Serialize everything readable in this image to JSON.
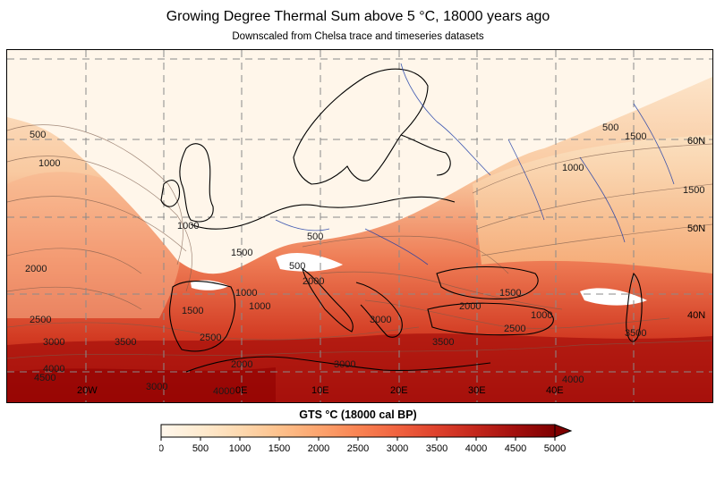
{
  "title": "Growing Degree Thermal Sum above 5 °C, 18000 years ago",
  "subtitle": "Downscaled from Chelsa trace and timeseries datasets",
  "map": {
    "graticule_labels": {
      "lon_20w": "20W",
      "lon_0e": "0E",
      "lon_10e": "10E",
      "lon_20e": "20E",
      "lon_30e": "30E",
      "lon_40e": "40E",
      "lat_60n": "60N",
      "lat_50n": "50N",
      "lat_40n": "40N"
    },
    "contour_labels": [
      "500",
      "1000",
      "2000",
      "2500",
      "3000",
      "3500",
      "4000",
      "4500",
      "1500",
      "1000",
      "500",
      "1000",
      "1500",
      "500",
      "2000",
      "1500",
      "1000",
      "2000",
      "3000",
      "3500",
      "4000",
      "2500",
      "3000",
      "1000",
      "1500",
      "2000",
      "3000",
      "2500",
      "3500",
      "4000",
      "1000",
      "500",
      "1500"
    ],
    "colors": {
      "ice": "#fff6ea",
      "low": "#fde5c8",
      "mid": "#f5a06a",
      "high": "#d6301d",
      "max": "#8f0000",
      "coast": "#000000",
      "rivers": "#1f3ea8",
      "grid": "#8a8a8a"
    }
  },
  "colorbar": {
    "title": "GTS °C (18000 cal BP)",
    "ticks": [
      "0",
      "500",
      "1000",
      "1500",
      "2000",
      "2500",
      "3000",
      "3500",
      "4000",
      "4500",
      "5000"
    ],
    "colors": [
      "#fff7ec",
      "#feebd0",
      "#fdd9b0",
      "#fdc18c",
      "#fca46e",
      "#f98352",
      "#f0623f",
      "#de412c",
      "#c3261b",
      "#a20f0d",
      "#7f0000"
    ],
    "extend": "max"
  }
}
